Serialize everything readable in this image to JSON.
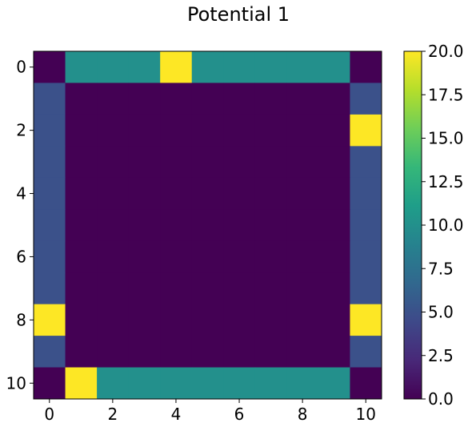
{
  "chart_data": {
    "type": "heatmap",
    "title": "Potential 1",
    "xlabel": "",
    "ylabel": "",
    "colormap": "viridis",
    "vmin": 0,
    "vmax": 20,
    "x_ticks": [
      0,
      2,
      4,
      6,
      8,
      10
    ],
    "y_ticks": [
      0,
      2,
      4,
      6,
      8,
      10
    ],
    "x_tick_labels": [
      "0",
      "2",
      "4",
      "6",
      "8",
      "10"
    ],
    "y_tick_labels": [
      "0",
      "2",
      "4",
      "6",
      "8",
      "10"
    ],
    "colorbar_ticks": [
      0,
      2.5,
      5,
      7.5,
      10,
      12.5,
      15,
      17.5,
      20
    ],
    "colorbar_tick_labels": [
      "0.0",
      "2.5",
      "5.0",
      "7.5",
      "10.0",
      "12.5",
      "15.0",
      "17.5",
      "20.0"
    ],
    "rows": 11,
    "cols": 11,
    "values": [
      [
        0,
        10,
        10,
        10,
        20,
        10,
        10,
        10,
        10,
        10,
        0
      ],
      [
        5,
        0,
        0,
        0,
        0,
        0,
        0,
        0,
        0,
        0,
        5
      ],
      [
        5,
        0,
        0,
        0,
        0,
        0,
        0,
        0,
        0,
        0,
        20
      ],
      [
        5,
        0,
        0,
        0,
        0,
        0,
        0,
        0,
        0,
        0,
        5
      ],
      [
        5,
        0,
        0,
        0,
        0,
        0,
        0,
        0,
        0,
        0,
        5
      ],
      [
        5,
        0,
        0,
        0,
        0,
        0,
        0,
        0,
        0,
        0,
        5
      ],
      [
        5,
        0,
        0,
        0,
        0,
        0,
        0,
        0,
        0,
        0,
        5
      ],
      [
        5,
        0,
        0,
        0,
        0,
        0,
        0,
        0,
        0,
        0,
        5
      ],
      [
        20,
        0,
        0,
        0,
        0,
        0,
        0,
        0,
        0,
        0,
        20
      ],
      [
        5,
        0,
        0,
        0,
        0,
        0,
        0,
        0,
        0,
        0,
        5
      ],
      [
        0,
        20,
        10,
        10,
        10,
        10,
        10,
        10,
        10,
        10,
        0
      ]
    ],
    "colors": {
      "viridis_stops": [
        "#440154",
        "#482878",
        "#3e4989",
        "#31688e",
        "#26828e",
        "#1f9e89",
        "#35b779",
        "#6ece58",
        "#b5de2b",
        "#fde725"
      ],
      "axis": "#000000",
      "background": "#ffffff"
    }
  }
}
